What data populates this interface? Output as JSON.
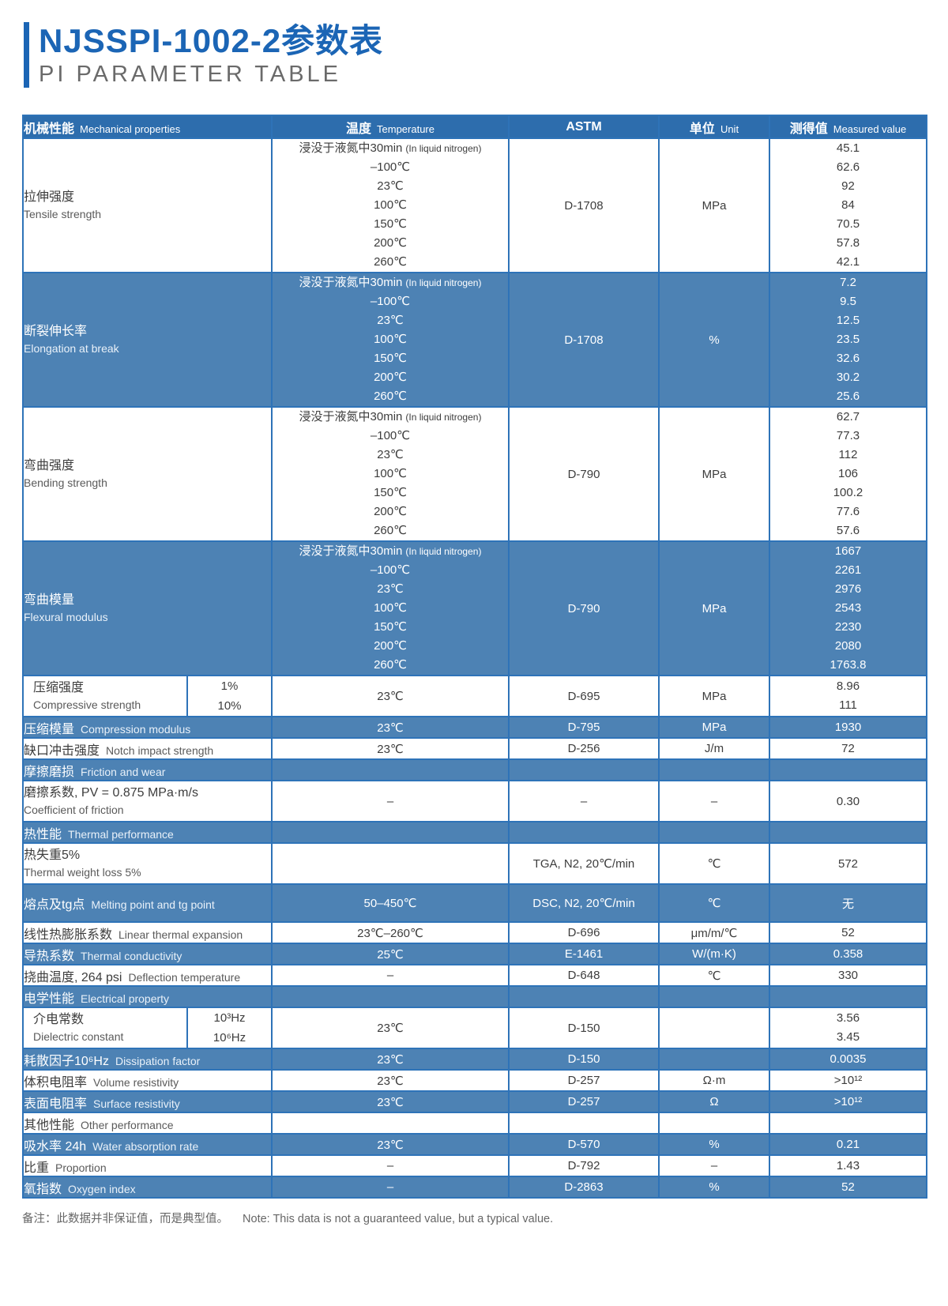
{
  "page": {
    "title": "NJSSPI-1002-2参数表",
    "subtitle": "PI PARAMETER TABLE",
    "note_zh": "备注：此数据并非保证值，而是典型值。",
    "note_en": "Note: This data is not a guaranteed value, but a typical value."
  },
  "colors": {
    "accent_blue": "#1b65b5",
    "header_bg": "#2d6dad",
    "band_blue": "#4d82b4",
    "border_blue": "#2e73b8",
    "subtitle_gray": "#6a6a6a"
  },
  "table": {
    "headers": [
      {
        "zh": "机械性能",
        "en": "Mechanical properties"
      },
      {
        "zh": "温度",
        "en": "Temperature"
      },
      {
        "zh": "ASTM",
        "en": ""
      },
      {
        "zh": "单位",
        "en": "Unit"
      },
      {
        "zh": "测得值",
        "en": "Measured value"
      }
    ],
    "rows": [
      {
        "type": "block",
        "bg": "white",
        "label_zh": "拉伸强度",
        "label_en": "Tensile strength",
        "temps": [
          "浸没于液氮中30min",
          "–100℃",
          "23℃",
          "100℃",
          "150℃",
          "200℃",
          "260℃"
        ],
        "temp_first_sub": "(In liquid nitrogen)",
        "astm": "D-1708",
        "unit": "MPa",
        "values": [
          "45.1",
          "62.6",
          "92",
          "84",
          "70.5",
          "57.8",
          "42.1"
        ]
      },
      {
        "type": "block",
        "bg": "blue",
        "label_zh": "断裂伸长率",
        "label_en": "Elongation at break",
        "temps": [
          "浸没于液氮中30min",
          "–100℃",
          "23℃",
          "100℃",
          "150℃",
          "200℃",
          "260℃"
        ],
        "temp_first_sub": "(In liquid nitrogen)",
        "astm": "D-1708",
        "unit": "%",
        "values": [
          "7.2",
          "9.5",
          "12.5",
          "23.5",
          "32.6",
          "30.2",
          "25.6"
        ]
      },
      {
        "type": "block",
        "bg": "white",
        "label_zh": "弯曲强度",
        "label_en": "Bending strength",
        "temps": [
          "浸没于液氮中30min",
          "–100℃",
          "23℃",
          "100℃",
          "150℃",
          "200℃",
          "260℃"
        ],
        "temp_first_sub": "(In liquid nitrogen)",
        "astm": "D-790",
        "unit": "MPa",
        "values": [
          "62.7",
          "77.3",
          "112",
          "106",
          "100.2",
          "77.6",
          "57.6"
        ]
      },
      {
        "type": "block",
        "bg": "blue",
        "label_zh": "弯曲模量",
        "label_en": "Flexural modulus",
        "temps": [
          "浸没于液氮中30min",
          "–100℃",
          "23℃",
          "100℃",
          "150℃",
          "200℃",
          "260℃"
        ],
        "temp_first_sub": "(In liquid nitrogen)",
        "astm": "D-790",
        "unit": "MPa",
        "values": [
          "1667",
          "2261",
          "2976",
          "2543",
          "2230",
          "2080",
          "1763.8"
        ]
      },
      {
        "type": "split",
        "bg": "white",
        "label_zh": "压缩强度",
        "label_en": "Compressive strength",
        "subs": [
          "1%",
          "10%"
        ],
        "temp": "23℃",
        "astm": "D-695",
        "unit": "MPa",
        "values": [
          "8.96",
          "111"
        ]
      },
      {
        "type": "single",
        "bg": "blue",
        "label_zh": "压缩模量",
        "label_en": "Compression modulus",
        "temp": "23℃",
        "astm": "D-795",
        "unit": "MPa",
        "value": "1930"
      },
      {
        "type": "single",
        "bg": "white",
        "label_zh": "缺口冲击强度",
        "label_en": "Notch impact strength",
        "temp": "23℃",
        "astm": "D-256",
        "unit": "J/m",
        "value": "72"
      },
      {
        "type": "section",
        "bg": "blue",
        "label_zh": "摩擦磨损",
        "label_en": "Friction and wear"
      },
      {
        "type": "single2",
        "bg": "white",
        "label_zh": "磨擦系数, PV = 0.875 MPa·m/s",
        "label_en": "Coefficient of friction",
        "temp": "–",
        "astm": "–",
        "unit": "–",
        "value": "0.30"
      },
      {
        "type": "section",
        "bg": "blue",
        "label_zh": "热性能",
        "label_en": "Thermal performance"
      },
      {
        "type": "single2",
        "bg": "white",
        "label_zh": "热失重5%",
        "label_en": "Thermal weight loss 5%",
        "temp": "",
        "astm": "TGA,  N2,  20℃/min",
        "unit": "℃",
        "value": "572"
      },
      {
        "type": "single",
        "bg": "blue",
        "tall": true,
        "label_zh": "熔点及tg点",
        "label_en": "Melting point and tg point",
        "temp": "50–450℃",
        "astm": "DSC,  N2,  20℃/min",
        "unit": "℃",
        "value": "无"
      },
      {
        "type": "single",
        "bg": "white",
        "label_zh": "线性热膨胀系数",
        "label_en": "Linear thermal expansion",
        "temp": "23℃–260℃",
        "astm": "D-696",
        "unit": "μm/m/℃",
        "value": "52"
      },
      {
        "type": "single",
        "bg": "blue",
        "label_zh": "导热系数",
        "label_en": "Thermal conductivity",
        "temp": "25℃",
        "astm": "E-1461",
        "unit": "W/(m·K)",
        "value": "0.358"
      },
      {
        "type": "single",
        "bg": "white",
        "label_zh": "挠曲温度, 264 psi",
        "label_en": "Deflection temperature",
        "temp": "–",
        "astm": "D-648",
        "unit": "℃",
        "value": "330"
      },
      {
        "type": "section",
        "bg": "blue",
        "label_zh": "电学性能",
        "label_en": "Electrical property"
      },
      {
        "type": "split",
        "bg": "white",
        "label_zh": "介电常数",
        "label_en": "Dielectric constant",
        "subs": [
          "10³Hz",
          "10⁶Hz"
        ],
        "temp": "23℃",
        "astm": "D-150",
        "unit": "",
        "values": [
          "3.56",
          "3.45"
        ]
      },
      {
        "type": "single",
        "bg": "blue",
        "label_zh": "耗散因子10⁶Hz",
        "label_en": "Dissipation factor",
        "temp": "23℃",
        "astm": "D-150",
        "unit": "",
        "value": "0.0035"
      },
      {
        "type": "single",
        "bg": "white",
        "label_zh": "体积电阻率",
        "label_en": "Volume resistivity",
        "temp": "23℃",
        "astm": "D-257",
        "unit": "Ω·m",
        "value": ">10¹²"
      },
      {
        "type": "single",
        "bg": "blue",
        "label_zh": "表面电阻率",
        "label_en": "Surface resistivity",
        "temp": "23℃",
        "astm": "D-257",
        "unit": "Ω",
        "value": ">10¹²"
      },
      {
        "type": "section",
        "bg": "white",
        "label_zh": "其他性能",
        "label_en": "Other performance"
      },
      {
        "type": "single",
        "bg": "blue",
        "label_zh": "吸水率 24h",
        "label_en": "Water absorption rate",
        "temp": "23℃",
        "astm": "D-570",
        "unit": "%",
        "value": "0.21"
      },
      {
        "type": "single",
        "bg": "white",
        "label_zh": "比重",
        "label_en": "Proportion",
        "temp": "–",
        "astm": "D-792",
        "unit": "–",
        "value": "1.43"
      },
      {
        "type": "single",
        "bg": "blue",
        "label_zh": "氧指数",
        "label_en": "Oxygen index",
        "temp": "–",
        "astm": "D-2863",
        "unit": "%",
        "value": "52"
      }
    ]
  }
}
